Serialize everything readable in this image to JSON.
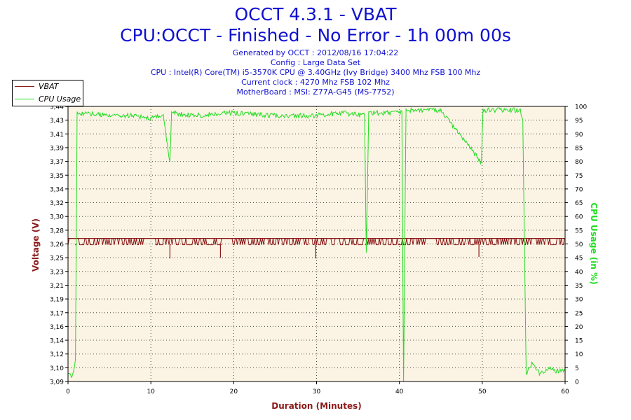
{
  "header": {
    "title_line1": "OCCT 4.3.1 - VBAT",
    "title_line2": "CPU:OCCT - Finished - No Error - 1h 00m 00s",
    "info_lines": [
      "Generated by OCCT : 2012/08/16 17:04:22",
      "Config : Large Data Set",
      "CPU : Intel(R) Core(TM) i5-3570K CPU @ 3.40GHz (Ivy Bridge) 3400 Mhz FSB 100 Mhz",
      "Current clock : 4270 Mhz FSB 102 Mhz",
      "MotherBoard : MSI: Z77A-G45 (MS-7752)"
    ]
  },
  "colors": {
    "title": "#1010d0",
    "vbat": "#8b1a1a",
    "cpu": "#22dd22",
    "plot_bg": "#fbf4e4"
  },
  "chart_data": {
    "type": "line",
    "xlabel": "Duration (Minutes)",
    "ylabel_left": "Voltage (V)",
    "ylabel_right": "CPU Usage (in %)",
    "xlim": [
      0,
      60
    ],
    "x_ticks": [
      "0",
      "10",
      "20",
      "30",
      "40",
      "50",
      "60"
    ],
    "ylim_left": [
      3.09,
      3.44
    ],
    "y_left_ticks": [
      "3,44",
      "3,43",
      "3,41",
      "3,39",
      "3,37",
      "3,35",
      "3,34",
      "3,32",
      "3,30",
      "3,28",
      "3,26",
      "3,25",
      "3,23",
      "3,21",
      "3,19",
      "3,17",
      "3,16",
      "3,14",
      "3,12",
      "3,10",
      "3,09"
    ],
    "ylim_right": [
      0,
      100
    ],
    "y_right_ticks": [
      "100",
      "95",
      "90",
      "85",
      "80",
      "75",
      "70",
      "65",
      "60",
      "55",
      "50",
      "45",
      "40",
      "35",
      "30",
      "25",
      "20",
      "15",
      "10",
      "5",
      "0"
    ],
    "grid": "dotted",
    "legend_position": "top-left",
    "series": [
      {
        "name": "VBAT",
        "axis": "left",
        "x": [
          0,
          0.9,
          1.0,
          10.6,
          10.7,
          12.3,
          12.4,
          18.4,
          18.5,
          29.9,
          30.0,
          35.9,
          36.0,
          40.4,
          40.5,
          49.6,
          49.7,
          60
        ],
        "y": [
          3.264,
          3.264,
          3.264,
          3.264,
          3.264,
          3.247,
          3.264,
          3.248,
          3.264,
          3.247,
          3.264,
          3.264,
          3.264,
          3.264,
          3.264,
          3.249,
          3.264,
          3.264
        ],
        "upper_level": 3.272,
        "lower_level": 3.264
      },
      {
        "name": "CPU Usage",
        "axis": "right",
        "x": [
          0,
          0.5,
          0.9,
          1.1,
          5,
          8,
          10,
          11.5,
          12.3,
          12.5,
          15,
          20,
          25,
          30,
          33,
          35.8,
          36.0,
          36.3,
          40.3,
          40.5,
          40.8,
          45,
          49.9,
          50.1,
          54.6,
          54.9,
          55.3,
          56,
          57,
          58,
          59,
          60
        ],
        "y": [
          3,
          2,
          8,
          98,
          97,
          97,
          96,
          97,
          80,
          98,
          97,
          98,
          97,
          97,
          98,
          97,
          47,
          98,
          98,
          0,
          99,
          99,
          80,
          99,
          99,
          95,
          3,
          7,
          3,
          5,
          4,
          4
        ]
      }
    ]
  }
}
